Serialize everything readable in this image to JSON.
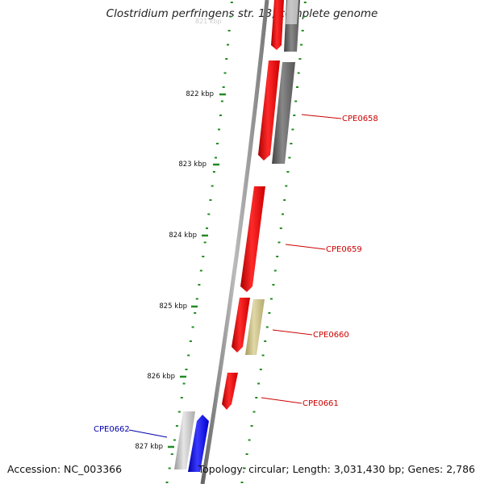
{
  "title": "Clostridium perfringens str. 13, complete genome",
  "accession": "Accession: NC_003366",
  "topology": "Topology: circular; Length: 3,031,430 bp; Genes: 2,786",
  "ticks": [
    {
      "label": "822 kbp",
      "kbp": 822
    },
    {
      "label": "823 kbp",
      "kbp": 823
    },
    {
      "label": "824 kbp",
      "kbp": 824
    },
    {
      "label": "825 kbp",
      "kbp": 825
    },
    {
      "label": "826 kbp",
      "kbp": 826
    },
    {
      "label": "827 kbp",
      "kbp": 827
    }
  ],
  "genes": [
    {
      "label": "CPE0658",
      "color": "#cc0000"
    },
    {
      "label": "CPE0659",
      "color": "#cc0000"
    },
    {
      "label": "CPE0660",
      "color": "#cc0000"
    },
    {
      "label": "CPE0661",
      "color": "#cc0000"
    },
    {
      "label": "CPE0662",
      "color": "#0000aa"
    }
  ],
  "colors": {
    "backbone": "#888888",
    "tick": "#228b22",
    "feature_red": "#ee1111",
    "feature_grey": "#666666",
    "feature_light_grey": "#bbbbbb",
    "feature_khaki": "#c9c08a",
    "feature_blue": "#1111ee"
  }
}
